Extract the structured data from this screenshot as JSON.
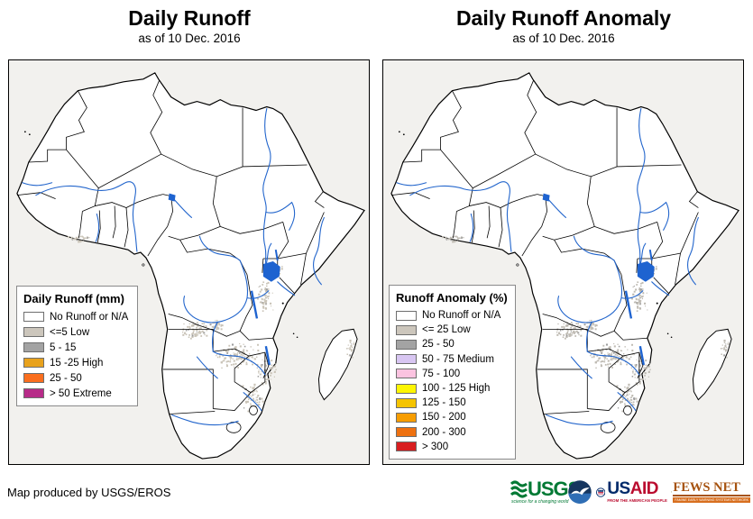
{
  "left_panel": {
    "title": "Daily Runoff",
    "subtitle": "as of 10 Dec. 2016",
    "legend": {
      "title": "Daily Runoff (mm)",
      "items": [
        {
          "label": "No Runoff or N/A",
          "color": "#ffffff"
        },
        {
          "label": "<=5 Low",
          "color": "#ccc6bc"
        },
        {
          "label": "5 - 15",
          "color": "#a3a3a3"
        },
        {
          "label": "15 -25 High",
          "color": "#e8a21d"
        },
        {
          "label": "25 - 50",
          "color": "#fa6e1e"
        },
        {
          "label": "> 50 Extreme",
          "color": "#b72b88"
        }
      ]
    }
  },
  "right_panel": {
    "title": "Daily Runoff Anomaly",
    "subtitle": "as of 10 Dec. 2016",
    "legend": {
      "title": "Runoff Anomaly (%)",
      "items": [
        {
          "label": "No Runoff or N/A",
          "color": "#ffffff"
        },
        {
          "label": "<= 25 Low",
          "color": "#ccc6bc"
        },
        {
          "label": "25 - 50",
          "color": "#a3a3a3"
        },
        {
          "label": "50 - 75 Medium",
          "color": "#d8c6f2"
        },
        {
          "label": "75 - 100",
          "color": "#fbc3e0"
        },
        {
          "label": "100 - 125 High",
          "color": "#fdf503"
        },
        {
          "label": "125 - 150",
          "color": "#f5c400"
        },
        {
          "label": "150 - 200",
          "color": "#f79d00"
        },
        {
          "label": "200 - 300",
          "color": "#ee7110"
        },
        {
          "label": "> 300",
          "color": "#d81e20"
        }
      ]
    }
  },
  "map": {
    "ocean_color": "#f2f1ee",
    "land_color": "#ffffff",
    "border_color": "#000000",
    "river_color": "#2265cc",
    "lake_color": "#1e63d0",
    "speckle_color_left": "#cac4b8",
    "speckle_color_right": "#bfbbb3"
  },
  "footer": {
    "credit": "Map produced by USGS/EROS",
    "logos": {
      "usgs": {
        "name": "USGS",
        "tagline": "science for a changing world",
        "color": "#007934"
      },
      "noaa": {
        "name": "noaa-emblem",
        "color": "#16365f"
      },
      "usaid": {
        "name_us": "US",
        "name_aid": "AID",
        "tagline": "FROM THE AMERICAN PEOPLE",
        "color_blue": "#002a6a",
        "color_red": "#ba0c2f"
      },
      "fews": {
        "name": "FEWS NET",
        "tagline": "FAMINE EARLY WARNING SYSTEMS NETWORK",
        "color": "#d86f1f"
      }
    }
  }
}
